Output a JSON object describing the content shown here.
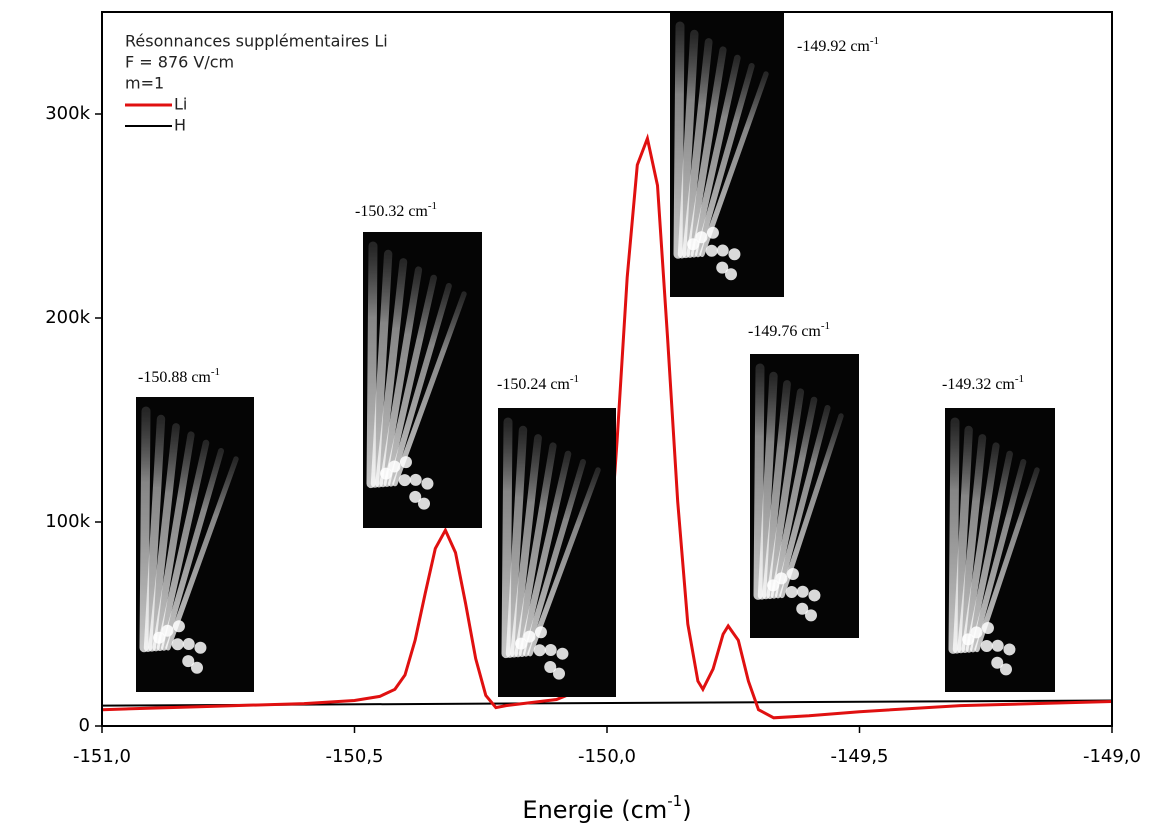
{
  "chart_data": {
    "type": "line",
    "xlabel": [
      "Energie (cm",
      "-1",
      ")"
    ],
    "legend_title": [
      "Résonnances supplémentaires Li",
      "F = 876 V/cm",
      "m=1"
    ],
    "legend": "upper left",
    "xlim": [
      -151,
      -149
    ],
    "xticks": [
      {
        "value": -151,
        "label": "-151,0"
      },
      {
        "value": -150.5,
        "label": "-150,5"
      },
      {
        "value": -150,
        "label": "-150,0"
      },
      {
        "value": -149.5,
        "label": "-149,5"
      },
      {
        "value": -149,
        "label": "-149,0"
      }
    ],
    "ylim": [
      0,
      350000
    ],
    "yticks": [
      0,
      {
        "value": 100000,
        "label": "100k"
      },
      {
        "value": 200000,
        "label": "200k"
      },
      {
        "value": 300000,
        "label": "300k"
      }
    ],
    "series": [
      {
        "name": "Li",
        "color": "#e01010",
        "x": [
          -151,
          -150.8,
          -150.6,
          -150.5,
          -150.45,
          -150.42,
          -150.4,
          -150.38,
          -150.36,
          -150.34,
          -150.32,
          -150.3,
          -150.28,
          -150.26,
          -150.24,
          -150.22,
          -150.2,
          -150.1,
          -150.05,
          -150.02,
          -150,
          -149.98,
          -149.96,
          -149.94,
          -149.92,
          -149.9,
          -149.88,
          -149.86,
          -149.84,
          -149.82,
          -149.81,
          -149.79,
          -149.77,
          -149.76,
          -149.74,
          -149.72,
          -149.7,
          -149.67,
          -149.6,
          -149.5,
          -149.3,
          -149
        ],
        "values": [
          8000,
          9500,
          11000,
          12500,
          14500,
          18000,
          25000,
          42000,
          65000,
          87000,
          96000,
          85000,
          60000,
          33000,
          15000,
          9000,
          10000,
          13000,
          18000,
          35000,
          70000,
          140000,
          220000,
          275000,
          288000,
          265000,
          190000,
          110000,
          50000,
          22000,
          18000,
          28000,
          45000,
          49000,
          42000,
          22000,
          8000,
          4000,
          5000,
          7000,
          10000,
          12000
        ]
      },
      {
        "name": "H",
        "color": "#000000",
        "x": [
          -151,
          -149
        ],
        "values": [
          10000,
          12500
        ]
      }
    ],
    "annotations": [
      {
        "text": "-150.88 cm",
        "sup": "-1"
      },
      {
        "text": "-150.32 cm",
        "sup": "-1"
      },
      {
        "text": "-150.24 cm",
        "sup": "-1"
      },
      {
        "text": "-149.92 cm",
        "sup": "-1"
      },
      {
        "text": "-149.76 cm",
        "sup": "-1"
      },
      {
        "text": "-149.32 cm",
        "sup": "-1"
      }
    ]
  }
}
